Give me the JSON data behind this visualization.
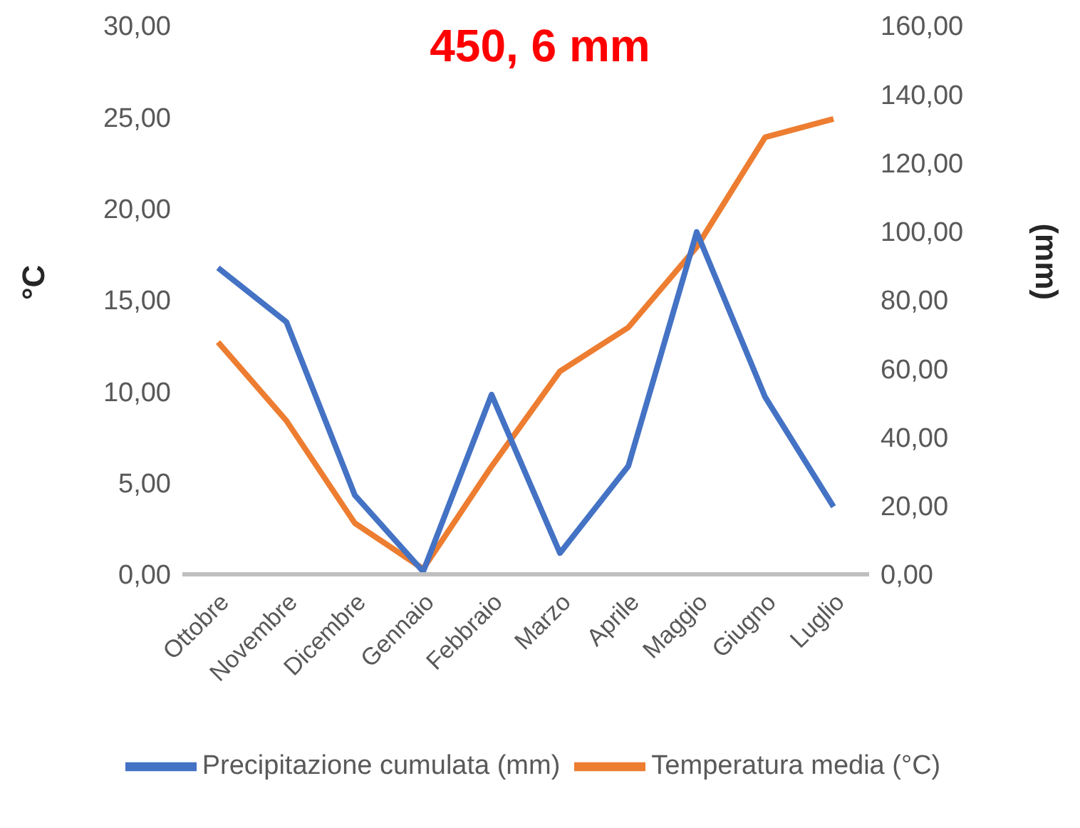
{
  "chart_data": {
    "type": "line",
    "title": "450, 6 mm",
    "ylabel": "°C",
    "y2label": "(mm)",
    "categories": [
      "Ottobre",
      "Novembre",
      "Dicembre",
      "Gennaio",
      "Febbraio",
      "Marzo",
      "Aprile",
      "Maggio",
      "Giugno",
      "Luglio"
    ],
    "series": [
      {
        "name": "Temperatura media (°C)",
        "color": "#ed7d31",
        "values": [
          12.7,
          8.4,
          2.8,
          0.3,
          5.9,
          11.1,
          13.5,
          17.9,
          23.9,
          24.9
        ]
      },
      {
        "name": "Precipitazione cumulata (mm)",
        "color": "#4472c4",
        "axis": "y2",
        "values": [
          89.4,
          73.6,
          23.1,
          0.8,
          52.4,
          6.2,
          31.6,
          99.8,
          51.7,
          19.7
        ]
      }
    ],
    "ylim": [
      0,
      30
    ],
    "yticks": [
      {
        "value": 0,
        "label": "0,00"
      },
      {
        "value": 5,
        "label": "5,00"
      },
      {
        "value": 10,
        "label": "10,00"
      },
      {
        "value": 15,
        "label": "15,00"
      },
      {
        "value": 20,
        "label": "20,00"
      },
      {
        "value": 25,
        "label": "25,00"
      },
      {
        "value": 30,
        "label": "30,00"
      }
    ],
    "y2lim": [
      0,
      160
    ],
    "y2ticks": [
      {
        "value": 0,
        "label": "0,00"
      },
      {
        "value": 20,
        "label": "20,00"
      },
      {
        "value": 40,
        "label": "40,00"
      },
      {
        "value": 60,
        "label": "60,00"
      },
      {
        "value": 80,
        "label": "80,00"
      },
      {
        "value": 100,
        "label": "100,00"
      },
      {
        "value": 120,
        "label": "120,00"
      },
      {
        "value": 140,
        "label": "140,00"
      },
      {
        "value": 160,
        "label": "160,00"
      }
    ],
    "grid": false,
    "legend": "bottom",
    "marker": "none",
    "line_style": "solid"
  }
}
